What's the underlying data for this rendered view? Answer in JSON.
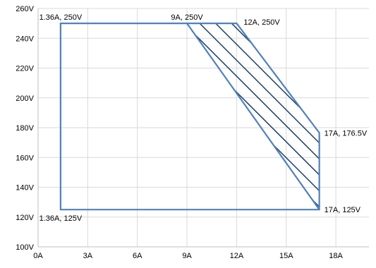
{
  "chart_data": {
    "type": "area",
    "title": "",
    "xlabel": "",
    "ylabel": "",
    "xlim": [
      0,
      20
    ],
    "ylim": [
      100,
      260
    ],
    "xticks": [
      0,
      3,
      6,
      9,
      12,
      15,
      18
    ],
    "xtick_labels": [
      "0A",
      "3A",
      "6A",
      "9A",
      "12A",
      "15A",
      "18A"
    ],
    "yticks": [
      100,
      120,
      140,
      160,
      180,
      200,
      220,
      240,
      260
    ],
    "ytick_labels": [
      "100V",
      "120V",
      "140V",
      "160V",
      "180V",
      "200V",
      "220V",
      "240V",
      "260V"
    ],
    "grid": true,
    "outline": [
      {
        "x": 1.36,
        "y": 250
      },
      {
        "x": 12,
        "y": 250
      },
      {
        "x": 17,
        "y": 176.5
      },
      {
        "x": 17,
        "y": 125
      },
      {
        "x": 1.36,
        "y": 125
      }
    ],
    "hatched_region": [
      {
        "x": 9,
        "y": 250
      },
      {
        "x": 12,
        "y": 250
      },
      {
        "x": 17,
        "y": 176.5
      },
      {
        "x": 17,
        "y": 125
      }
    ],
    "points": [
      {
        "x": 1.36,
        "y": 250,
        "label": "1.36A, 250V"
      },
      {
        "x": 9,
        "y": 250,
        "label": "9A, 250V"
      },
      {
        "x": 12,
        "y": 250,
        "label": "12A, 250V"
      },
      {
        "x": 17,
        "y": 176.5,
        "label": "17A, 176.5V"
      },
      {
        "x": 17,
        "y": 125,
        "label": "17A, 125V"
      },
      {
        "x": 1.36,
        "y": 125,
        "label": "1.36A, 125V"
      }
    ],
    "colors": {
      "outline": "#4f81bd",
      "hatch": "#1f3f5f",
      "grid": "#d9d9d9"
    }
  }
}
